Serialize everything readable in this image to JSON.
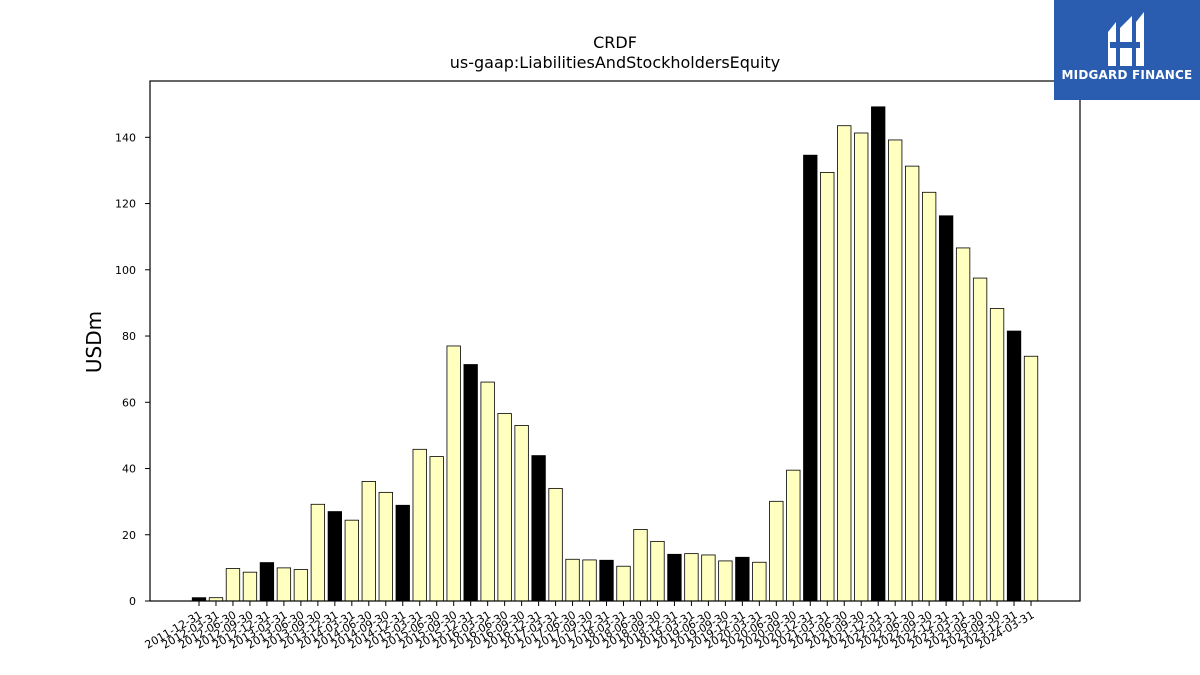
{
  "chart_data": {
    "type": "bar",
    "title": "CRDF",
    "subtitle": "us-gaap:LiabilitiesAndStockholdersEquity",
    "xlabel": "",
    "ylabel": "USDm",
    "ylim": [
      0,
      157
    ],
    "yticks": [
      0,
      20,
      40,
      60,
      80,
      100,
      120,
      140
    ],
    "grid": false,
    "colors": {
      "q4": "#000000",
      "other": "#ffffc0",
      "edge": "#000000"
    },
    "categories": [
      "2011-12-31",
      "2012-03-31",
      "2012-06-30",
      "2012-09-30",
      "2012-12-31",
      "2013-03-31",
      "2013-06-30",
      "2013-09-30",
      "2013-12-31",
      "2014-03-31",
      "2014-06-30",
      "2014-09-30",
      "2014-12-31",
      "2015-03-31",
      "2015-06-30",
      "2015-09-30",
      "2015-12-31",
      "2016-03-31",
      "2016-06-30",
      "2016-09-30",
      "2016-12-31",
      "2017-03-31",
      "2017-06-30",
      "2017-09-30",
      "2017-12-31",
      "2018-03-31",
      "2018-06-30",
      "2018-09-30",
      "2018-12-31",
      "2019-03-31",
      "2019-06-30",
      "2019-09-30",
      "2019-12-31",
      "2020-03-31",
      "2020-06-30",
      "2020-09-30",
      "2020-12-31",
      "2021-03-31",
      "2021-06-30",
      "2021-09-30",
      "2021-12-31",
      "2022-03-31",
      "2022-06-30",
      "2022-09-30",
      "2022-12-31",
      "2023-03-31",
      "2023-06-30",
      "2023-09-30",
      "2023-12-31",
      "2024-03-31"
    ],
    "values": [
      1.0,
      1.0,
      9.8,
      8.7,
      11.6,
      10.0,
      9.5,
      29.2,
      27.0,
      24.4,
      36.1,
      32.8,
      28.9,
      45.8,
      43.6,
      77.0,
      71.4,
      66.1,
      56.6,
      53.0,
      43.9,
      34.0,
      12.6,
      12.4,
      12.3,
      10.5,
      21.6,
      18.0,
      14.1,
      14.3,
      13.9,
      12.1,
      13.2,
      11.7,
      30.1,
      39.5,
      134.6,
      129.4,
      143.5,
      141.3,
      149.2,
      139.2,
      131.3,
      123.4,
      116.3,
      106.6,
      97.5,
      88.3,
      81.5,
      73.9
    ]
  },
  "logo": {
    "text": "MIDGARD FINANCE"
  }
}
